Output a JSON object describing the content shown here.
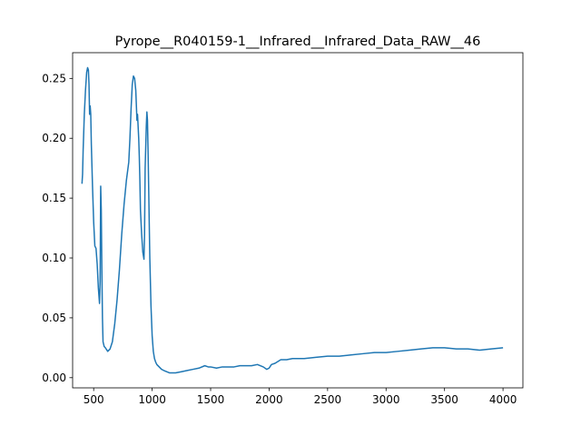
{
  "chart_data": {
    "type": "line",
    "title": "Pyrope__R040159-1__Infrared__Infrared_Data_RAW__46",
    "xlabel": "",
    "ylabel": "",
    "xlim": [
      320,
      4170
    ],
    "ylim": [
      -0.0085,
      0.2715
    ],
    "x_ticks": [
      500,
      1000,
      1500,
      2000,
      2500,
      3000,
      3500,
      4000
    ],
    "y_ticks": [
      0.0,
      0.05,
      0.1,
      0.15,
      0.2,
      0.25
    ],
    "grid": false,
    "series": [
      {
        "color": "#1f77b4",
        "x": [
          400,
          405,
          410,
          420,
          430,
          440,
          448,
          455,
          460,
          465,
          470,
          475,
          480,
          490,
          500,
          510,
          520,
          530,
          540,
          550,
          555,
          560,
          565,
          570,
          575,
          580,
          590,
          600,
          620,
          640,
          660,
          680,
          700,
          720,
          740,
          760,
          780,
          800,
          810,
          820,
          830,
          840,
          850,
          860,
          870,
          875,
          880,
          885,
          890,
          895,
          900,
          910,
          920,
          930,
          935,
          940,
          950,
          955,
          960,
          965,
          970,
          975,
          980,
          990,
          1000,
          1010,
          1020,
          1030,
          1040,
          1060,
          1080,
          1100,
          1150,
          1200,
          1250,
          1300,
          1350,
          1400,
          1450,
          1480,
          1500,
          1550,
          1600,
          1650,
          1700,
          1750,
          1800,
          1850,
          1900,
          1950,
          1980,
          2000,
          2020,
          2050,
          2100,
          2150,
          2200,
          2250,
          2300,
          2400,
          2500,
          2600,
          2700,
          2800,
          2900,
          3000,
          3100,
          3200,
          3300,
          3400,
          3500,
          3600,
          3700,
          3800,
          3900,
          4000
        ],
        "y": [
          0.162,
          0.17,
          0.19,
          0.22,
          0.24,
          0.255,
          0.259,
          0.257,
          0.245,
          0.22,
          0.227,
          0.22,
          0.195,
          0.16,
          0.13,
          0.11,
          0.108,
          0.095,
          0.075,
          0.062,
          0.08,
          0.16,
          0.14,
          0.09,
          0.05,
          0.03,
          0.026,
          0.025,
          0.022,
          0.024,
          0.03,
          0.045,
          0.065,
          0.09,
          0.12,
          0.145,
          0.165,
          0.18,
          0.2,
          0.225,
          0.245,
          0.252,
          0.25,
          0.24,
          0.215,
          0.22,
          0.21,
          0.2,
          0.185,
          0.165,
          0.14,
          0.12,
          0.105,
          0.099,
          0.12,
          0.175,
          0.21,
          0.222,
          0.215,
          0.19,
          0.16,
          0.13,
          0.1,
          0.06,
          0.035,
          0.022,
          0.016,
          0.013,
          0.011,
          0.009,
          0.007,
          0.006,
          0.004,
          0.004,
          0.005,
          0.006,
          0.007,
          0.008,
          0.01,
          0.009,
          0.009,
          0.008,
          0.009,
          0.009,
          0.009,
          0.01,
          0.01,
          0.01,
          0.011,
          0.009,
          0.007,
          0.008,
          0.011,
          0.012,
          0.015,
          0.015,
          0.016,
          0.016,
          0.016,
          0.017,
          0.018,
          0.018,
          0.019,
          0.02,
          0.021,
          0.021,
          0.022,
          0.023,
          0.024,
          0.025,
          0.025,
          0.024,
          0.024,
          0.023,
          0.024,
          0.025
        ]
      }
    ]
  }
}
